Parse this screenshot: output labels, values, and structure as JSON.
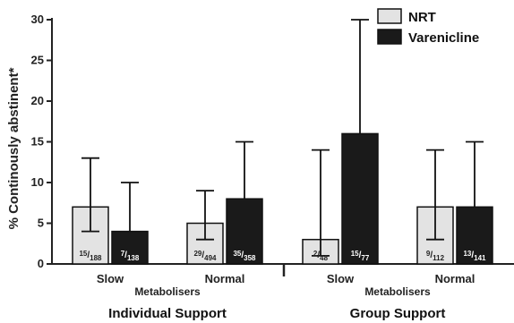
{
  "chart_data": {
    "type": "bar",
    "ylabel": "% Continously abstinent*",
    "ylim": [
      0,
      30
    ],
    "yticks": [
      "0",
      "5",
      "10",
      "15",
      "20",
      "25",
      "30"
    ],
    "groups": [
      {
        "label": "Individual Support",
        "sublabel": "Metabolisers",
        "categories": [
          "Slow",
          "Normal"
        ]
      },
      {
        "label": "Group Support",
        "sublabel": "Metabolisers",
        "categories": [
          "Slow",
          "Normal"
        ]
      }
    ],
    "series": [
      {
        "name": "NRT",
        "color": "#e3e3e3",
        "values": [
          7,
          5,
          3,
          7
        ],
        "error_low": [
          4,
          3,
          1,
          3
        ],
        "error_high": [
          13,
          9,
          14,
          14
        ],
        "counts": [
          {
            "num": "15",
            "den": "188"
          },
          {
            "num": "29",
            "den": "494"
          },
          {
            "num": "2",
            "den": "48"
          },
          {
            "num": "9",
            "den": "112"
          }
        ]
      },
      {
        "name": "Varenicline",
        "color": "#1a1a1a",
        "values": [
          4,
          8,
          16,
          7
        ],
        "error_low": [
          0,
          0,
          0,
          0
        ],
        "error_high": [
          10,
          15,
          30,
          15
        ],
        "counts": [
          {
            "num": "7",
            "den": "138"
          },
          {
            "num": "35",
            "den": "358"
          },
          {
            "num": "15",
            "den": "77"
          },
          {
            "num": "13",
            "den": "141"
          }
        ]
      }
    ],
    "legend": "top-right",
    "grid": false
  }
}
